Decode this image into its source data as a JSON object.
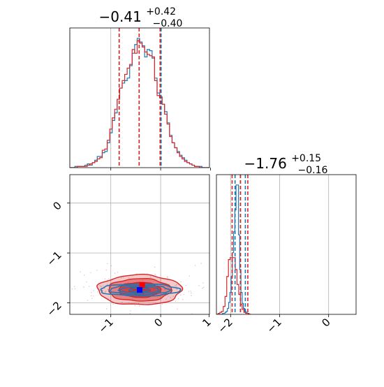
{
  "chart_data": [
    {
      "type": "histogram",
      "panel": "marginal-param-1",
      "title_main": "−0.41",
      "title_sup": "+0.42",
      "title_sub": "−0.40",
      "xlim": [
        -1.8,
        1.0
      ],
      "grid": true,
      "series": [
        {
          "color": "#1f77b4",
          "quantiles": [
            -0.81,
            -0.41,
            0.03
          ],
          "bins_start": -1.8,
          "bin_width": 0.05,
          "counts": [
            0,
            0,
            1,
            1,
            1,
            1,
            2,
            3,
            2,
            4,
            6,
            9,
            9,
            12,
            13,
            20,
            28,
            38,
            44,
            55,
            64,
            68,
            70,
            72,
            82,
            92,
            99,
            104,
            101,
            98,
            89,
            95,
            94,
            88,
            72,
            60,
            56,
            51,
            45,
            36,
            26,
            20,
            16,
            13,
            10,
            8,
            6,
            4,
            3,
            2,
            1,
            1,
            1,
            0,
            0,
            0
          ]
        },
        {
          "color": "#d62728",
          "quantiles": [
            -0.81,
            -0.41,
            0.01
          ],
          "bins_start": -1.8,
          "bin_width": 0.05,
          "counts": [
            0,
            0,
            0,
            1,
            1,
            1,
            1,
            2,
            3,
            4,
            5,
            7,
            8,
            14,
            15,
            22,
            31,
            40,
            47,
            55,
            64,
            70,
            75,
            80,
            83,
            95,
            92,
            102,
            100,
            97,
            93,
            91,
            90,
            89,
            70,
            58,
            57,
            51,
            43,
            35,
            25,
            20,
            16,
            12,
            9,
            7,
            5,
            4,
            3,
            2,
            1,
            1,
            0,
            0,
            0,
            0
          ]
        }
      ]
    },
    {
      "type": "histogram",
      "panel": "marginal-param-2",
      "title_main": "−1.76",
      "title_sup": "+0.15",
      "title_sub": "−0.16",
      "xlim": [
        -2.25,
        0.6
      ],
      "xticks": [
        "−2",
        "−1",
        "0"
      ],
      "grid": true,
      "series": [
        {
          "color": "#1f77b4",
          "quantiles": [
            -1.87,
            -1.76,
            -1.66
          ],
          "bins_start": -2.2,
          "bin_width": 0.025,
          "counts": [
            0,
            0,
            0,
            1,
            1,
            2,
            3,
            6,
            12,
            22,
            38,
            62,
            83,
            105,
            130,
            130,
            80,
            45,
            22,
            11,
            6,
            3,
            2,
            1,
            0,
            0
          ]
        },
        {
          "color": "#d62728",
          "quantiles": [
            -1.93,
            -1.76,
            -1.61
          ],
          "bins_start": -2.25,
          "bin_width": 0.035,
          "counts": [
            0,
            1,
            2,
            3,
            8,
            18,
            38,
            55,
            57,
            57,
            57,
            45,
            30,
            20,
            10,
            5,
            2,
            1,
            1,
            0
          ]
        }
      ]
    },
    {
      "type": "contour",
      "panel": "joint",
      "xlim": [
        -1.8,
        1.0
      ],
      "ylim": [
        -2.25,
        0.55
      ],
      "xticks": [
        "−1",
        "0",
        "1"
      ],
      "yticks": [
        "−2",
        "−1",
        "0"
      ],
      "grid": true,
      "series": [
        {
          "color": "#1f77b4",
          "center": [
            -0.4,
            -1.76
          ],
          "sigma": [
            0.4,
            0.06
          ],
          "fill": false
        },
        {
          "color": "#d62728",
          "center": [
            -0.4,
            -1.76
          ],
          "sigma": [
            0.42,
            0.15
          ],
          "fill": true
        }
      ]
    }
  ]
}
